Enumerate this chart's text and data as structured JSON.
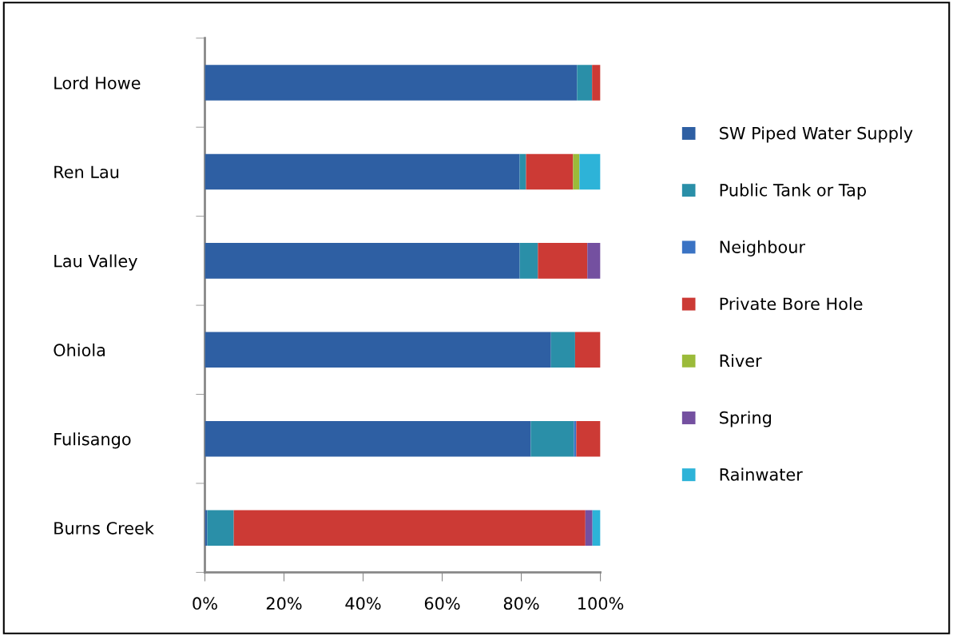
{
  "chart_data": {
    "type": "bar",
    "orientation": "horizontal",
    "stacked": true,
    "categories": [
      "Lord Howe",
      "Ren Lau",
      "Lau Valley",
      "Ohiola",
      "Fulisango",
      "Burns Creek"
    ],
    "series": [
      {
        "name": "SW Piped Water Supply",
        "color": "#2e5fa3",
        "values": [
          94.1,
          79.6,
          79.6,
          87.5,
          82.4,
          0.6
        ]
      },
      {
        "name": "Public Tank or Tap",
        "color": "#2a8fa8",
        "values": [
          3.8,
          1.6,
          4.6,
          6.1,
          10.9,
          6.7
        ]
      },
      {
        "name": "Neighbour",
        "color": "#3a73c4",
        "values": [
          0,
          0,
          0,
          0,
          0.6,
          0
        ]
      },
      {
        "name": "Private Bore Hole",
        "color": "#cc3a35",
        "values": [
          2.1,
          11.9,
          12.5,
          6.4,
          6.1,
          88.9
        ]
      },
      {
        "name": "River",
        "color": "#9bbb3a",
        "values": [
          0,
          1.6,
          0,
          0,
          0,
          0
        ]
      },
      {
        "name": "Spring",
        "color": "#7450a0",
        "values": [
          0,
          0,
          3.3,
          0,
          0,
          1.8
        ]
      },
      {
        "name": "Rainwater",
        "color": "#2db3d8",
        "values": [
          0,
          5.3,
          0,
          0,
          0,
          2.0
        ]
      }
    ],
    "xlim": [
      0,
      100
    ],
    "xticks": [
      {
        "value": 0,
        "label": "0%"
      },
      {
        "value": 20,
        "label": "20%"
      },
      {
        "value": 40,
        "label": "40%"
      },
      {
        "value": 60,
        "label": "60%"
      },
      {
        "value": 80,
        "label": "80%"
      },
      {
        "value": 100,
        "label": "100%"
      }
    ],
    "grid": false,
    "legend": "right"
  }
}
